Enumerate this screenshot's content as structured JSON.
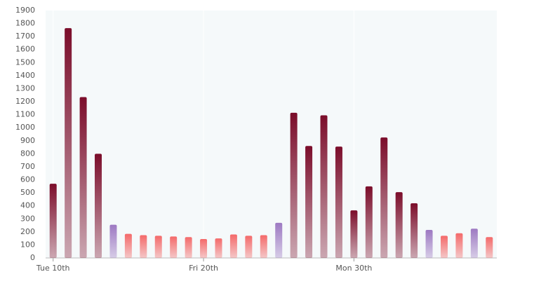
{
  "chart_data": {
    "type": "bar",
    "categories": [
      "Tue 10th",
      null,
      null,
      null,
      null,
      null,
      null,
      null,
      null,
      null,
      "Fri 20th",
      null,
      null,
      null,
      null,
      null,
      null,
      null,
      null,
      null,
      "Mon 30th",
      null,
      null,
      null,
      null,
      null,
      null,
      null,
      null,
      null
    ],
    "values": [
      570,
      1765,
      1235,
      800,
      255,
      185,
      175,
      170,
      165,
      160,
      145,
      150,
      180,
      170,
      175,
      270,
      1115,
      860,
      1095,
      855,
      365,
      550,
      925,
      505,
      420,
      215,
      170,
      190,
      225,
      160
    ],
    "colors": [
      "#7b0d2a",
      "#7b0d2a",
      "#7b0d2a",
      "#7b0d2a",
      "#9d79c2",
      "#f46a6a",
      "#f46a6a",
      "#f46a6a",
      "#f46a6a",
      "#f46a6a",
      "#f46a6a",
      "#f46a6a",
      "#f46a6a",
      "#f46a6a",
      "#f46a6a",
      "#9d79c2",
      "#7b0d2a",
      "#7b0d2a",
      "#7b0d2a",
      "#7b0d2a",
      "#7b0d2a",
      "#7b0d2a",
      "#7b0d2a",
      "#7b0d2a",
      "#7b0d2a",
      "#9d79c2",
      "#f46a6a",
      "#f46a6a",
      "#9d79c2",
      "#f46a6a"
    ],
    "ylim": [
      0,
      1900
    ],
    "yticks": [
      0,
      100,
      200,
      300,
      400,
      500,
      600,
      700,
      800,
      900,
      1000,
      1100,
      1200,
      1300,
      1400,
      1500,
      1600,
      1700,
      1800,
      1900
    ],
    "grid": true
  }
}
